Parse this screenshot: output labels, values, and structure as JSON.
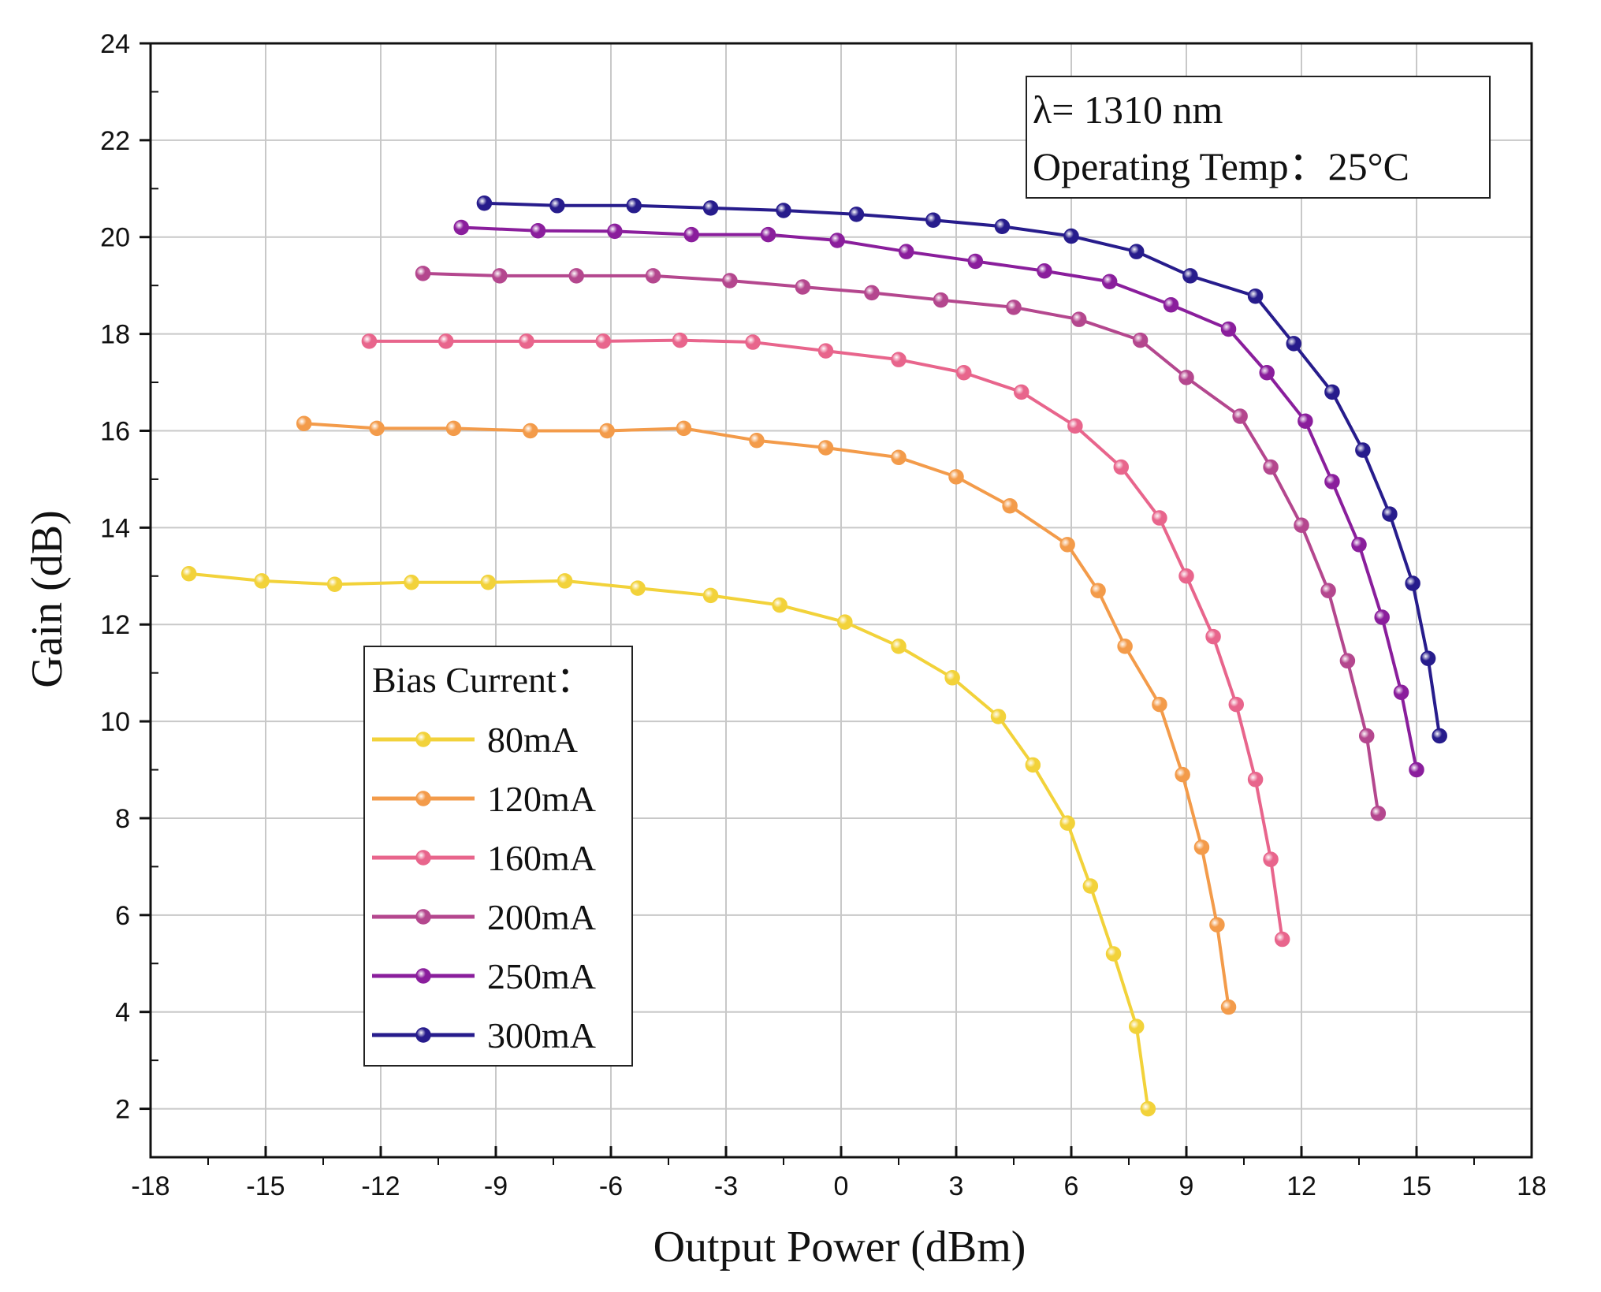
{
  "chart_data": {
    "type": "line",
    "title": "",
    "xlabel": "Output Power (dBm)",
    "ylabel": "Gain (dB)",
    "xlim": [
      -18,
      18
    ],
    "ylim": [
      1,
      24
    ],
    "xticks": [
      -18,
      -15,
      -12,
      -9,
      -6,
      -3,
      0,
      3,
      6,
      9,
      12,
      15,
      18
    ],
    "yticks": [
      2,
      4,
      6,
      8,
      10,
      12,
      14,
      16,
      18,
      20,
      22,
      24
    ],
    "grid": true,
    "annotations": [
      "λ= 1310 nm",
      "Operating Temp：25°C"
    ],
    "legend_title": "Bias Current：",
    "legend_position": "lower-left",
    "series": [
      {
        "name": "80mA",
        "color": "#f2d23a",
        "x": [
          -17,
          -15.1,
          -13.2,
          -11.2,
          -9.2,
          -7.2,
          -5.3,
          -3.4,
          -1.6,
          0.1,
          1.5,
          2.9,
          4.1,
          5.0,
          5.9,
          6.5,
          7.1,
          7.7,
          8.0
        ],
        "y": [
          13.05,
          12.9,
          12.83,
          12.87,
          12.87,
          12.9,
          12.75,
          12.6,
          12.4,
          12.05,
          11.55,
          10.9,
          10.1,
          9.1,
          7.9,
          6.6,
          5.2,
          3.7,
          2.0
        ]
      },
      {
        "name": "120mA",
        "color": "#f39b4a",
        "x": [
          -14,
          -12.1,
          -10.1,
          -8.1,
          -6.1,
          -4.1,
          -2.2,
          -0.4,
          1.5,
          3.0,
          4.4,
          5.9,
          6.7,
          7.4,
          8.3,
          8.9,
          9.4,
          9.8,
          10.1
        ],
        "y": [
          16.15,
          16.05,
          16.05,
          16.0,
          16.0,
          16.05,
          15.8,
          15.65,
          15.45,
          15.05,
          14.45,
          13.65,
          12.7,
          11.55,
          10.35,
          8.9,
          7.4,
          5.8,
          4.1
        ]
      },
      {
        "name": "160mA",
        "color": "#e8658c",
        "x": [
          -12.3,
          -10.3,
          -8.2,
          -6.2,
          -4.2,
          -2.3,
          -0.4,
          1.5,
          3.2,
          4.7,
          6.1,
          7.3,
          8.3,
          9.0,
          9.7,
          10.3,
          10.8,
          11.2,
          11.5
        ],
        "y": [
          17.85,
          17.85,
          17.85,
          17.85,
          17.87,
          17.83,
          17.65,
          17.47,
          17.2,
          16.8,
          16.1,
          15.25,
          14.2,
          13.0,
          11.75,
          10.35,
          8.8,
          7.15,
          5.5
        ]
      },
      {
        "name": "200mA",
        "color": "#b4478e",
        "x": [
          -10.9,
          -8.9,
          -6.9,
          -4.9,
          -2.9,
          -1.0,
          0.8,
          2.6,
          4.5,
          6.2,
          7.8,
          9.0,
          10.4,
          11.2,
          12.0,
          12.7,
          13.2,
          13.7,
          14.0
        ],
        "y": [
          19.25,
          19.2,
          19.2,
          19.2,
          19.1,
          18.97,
          18.85,
          18.7,
          18.55,
          18.3,
          17.87,
          17.1,
          16.3,
          15.25,
          14.05,
          12.7,
          11.25,
          9.7,
          8.1
        ]
      },
      {
        "name": "250mA",
        "color": "#8a1e9c",
        "x": [
          -9.9,
          -7.9,
          -5.9,
          -3.9,
          -1.9,
          -0.1,
          1.7,
          3.5,
          5.3,
          7.0,
          8.6,
          10.1,
          11.1,
          12.1,
          12.8,
          13.5,
          14.1,
          14.6,
          15.0
        ],
        "y": [
          20.2,
          20.13,
          20.12,
          20.05,
          20.05,
          19.93,
          19.7,
          19.5,
          19.3,
          19.08,
          18.6,
          18.1,
          17.2,
          16.2,
          14.95,
          13.65,
          12.15,
          10.6,
          9.0
        ]
      },
      {
        "name": "300mA",
        "color": "#271c8c",
        "x": [
          -9.3,
          -7.4,
          -5.4,
          -3.4,
          -1.5,
          0.4,
          2.4,
          4.2,
          6.0,
          7.7,
          9.1,
          10.8,
          11.8,
          12.8,
          13.6,
          14.3,
          14.9,
          15.3,
          15.6
        ],
        "y": [
          20.7,
          20.65,
          20.65,
          20.6,
          20.55,
          20.47,
          20.35,
          20.22,
          20.02,
          19.7,
          19.2,
          18.78,
          17.8,
          16.8,
          15.6,
          14.28,
          12.85,
          11.3,
          9.7
        ]
      }
    ]
  }
}
